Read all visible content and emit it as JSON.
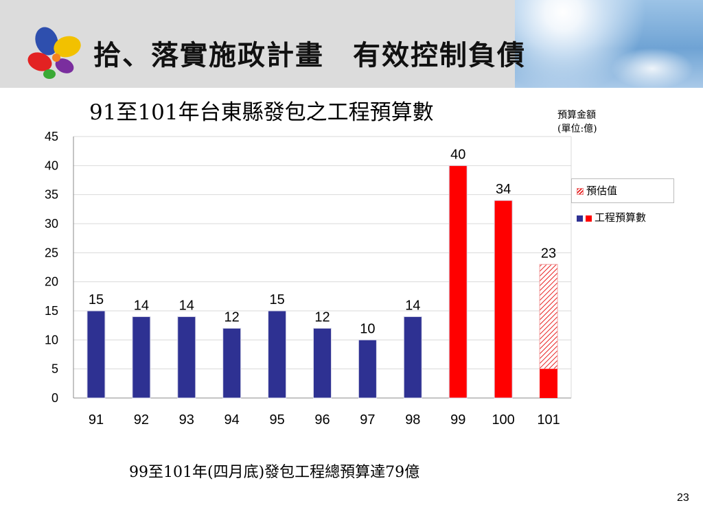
{
  "slide": {
    "main_title": "拾、落實施政計畫　有效控制負債",
    "unit_line1": "預算金額",
    "unit_line2": "(單位:億)",
    "footnote": "99至101年(四月底)發包工程總預算達79億",
    "page_number": "23"
  },
  "chart_data": {
    "type": "bar",
    "title": "91至101年台東縣發包之工程預算數",
    "xlabel": "",
    "ylabel": "",
    "ylim": [
      0,
      45
    ],
    "yticks": [
      0,
      5,
      10,
      15,
      20,
      25,
      30,
      35,
      40,
      45
    ],
    "categories": [
      "91",
      "92",
      "93",
      "94",
      "95",
      "96",
      "97",
      "98",
      "99",
      "100",
      "101"
    ],
    "values": [
      15,
      14,
      14,
      12,
      15,
      12,
      10,
      14,
      40,
      34,
      23
    ],
    "actual_part_101": 5,
    "bar_colors": [
      "#2e3192",
      "#2e3192",
      "#2e3192",
      "#2e3192",
      "#2e3192",
      "#2e3192",
      "#2e3192",
      "#2e3192",
      "#ff0000",
      "#ff0000",
      "#ff0000"
    ],
    "grid": true,
    "legend": {
      "position": "right",
      "entries": [
        {
          "label": "預估值",
          "style": "hatched-red"
        },
        {
          "label": "工程預算數",
          "colors": [
            "#2e3192",
            "#ff0000"
          ]
        }
      ]
    }
  }
}
